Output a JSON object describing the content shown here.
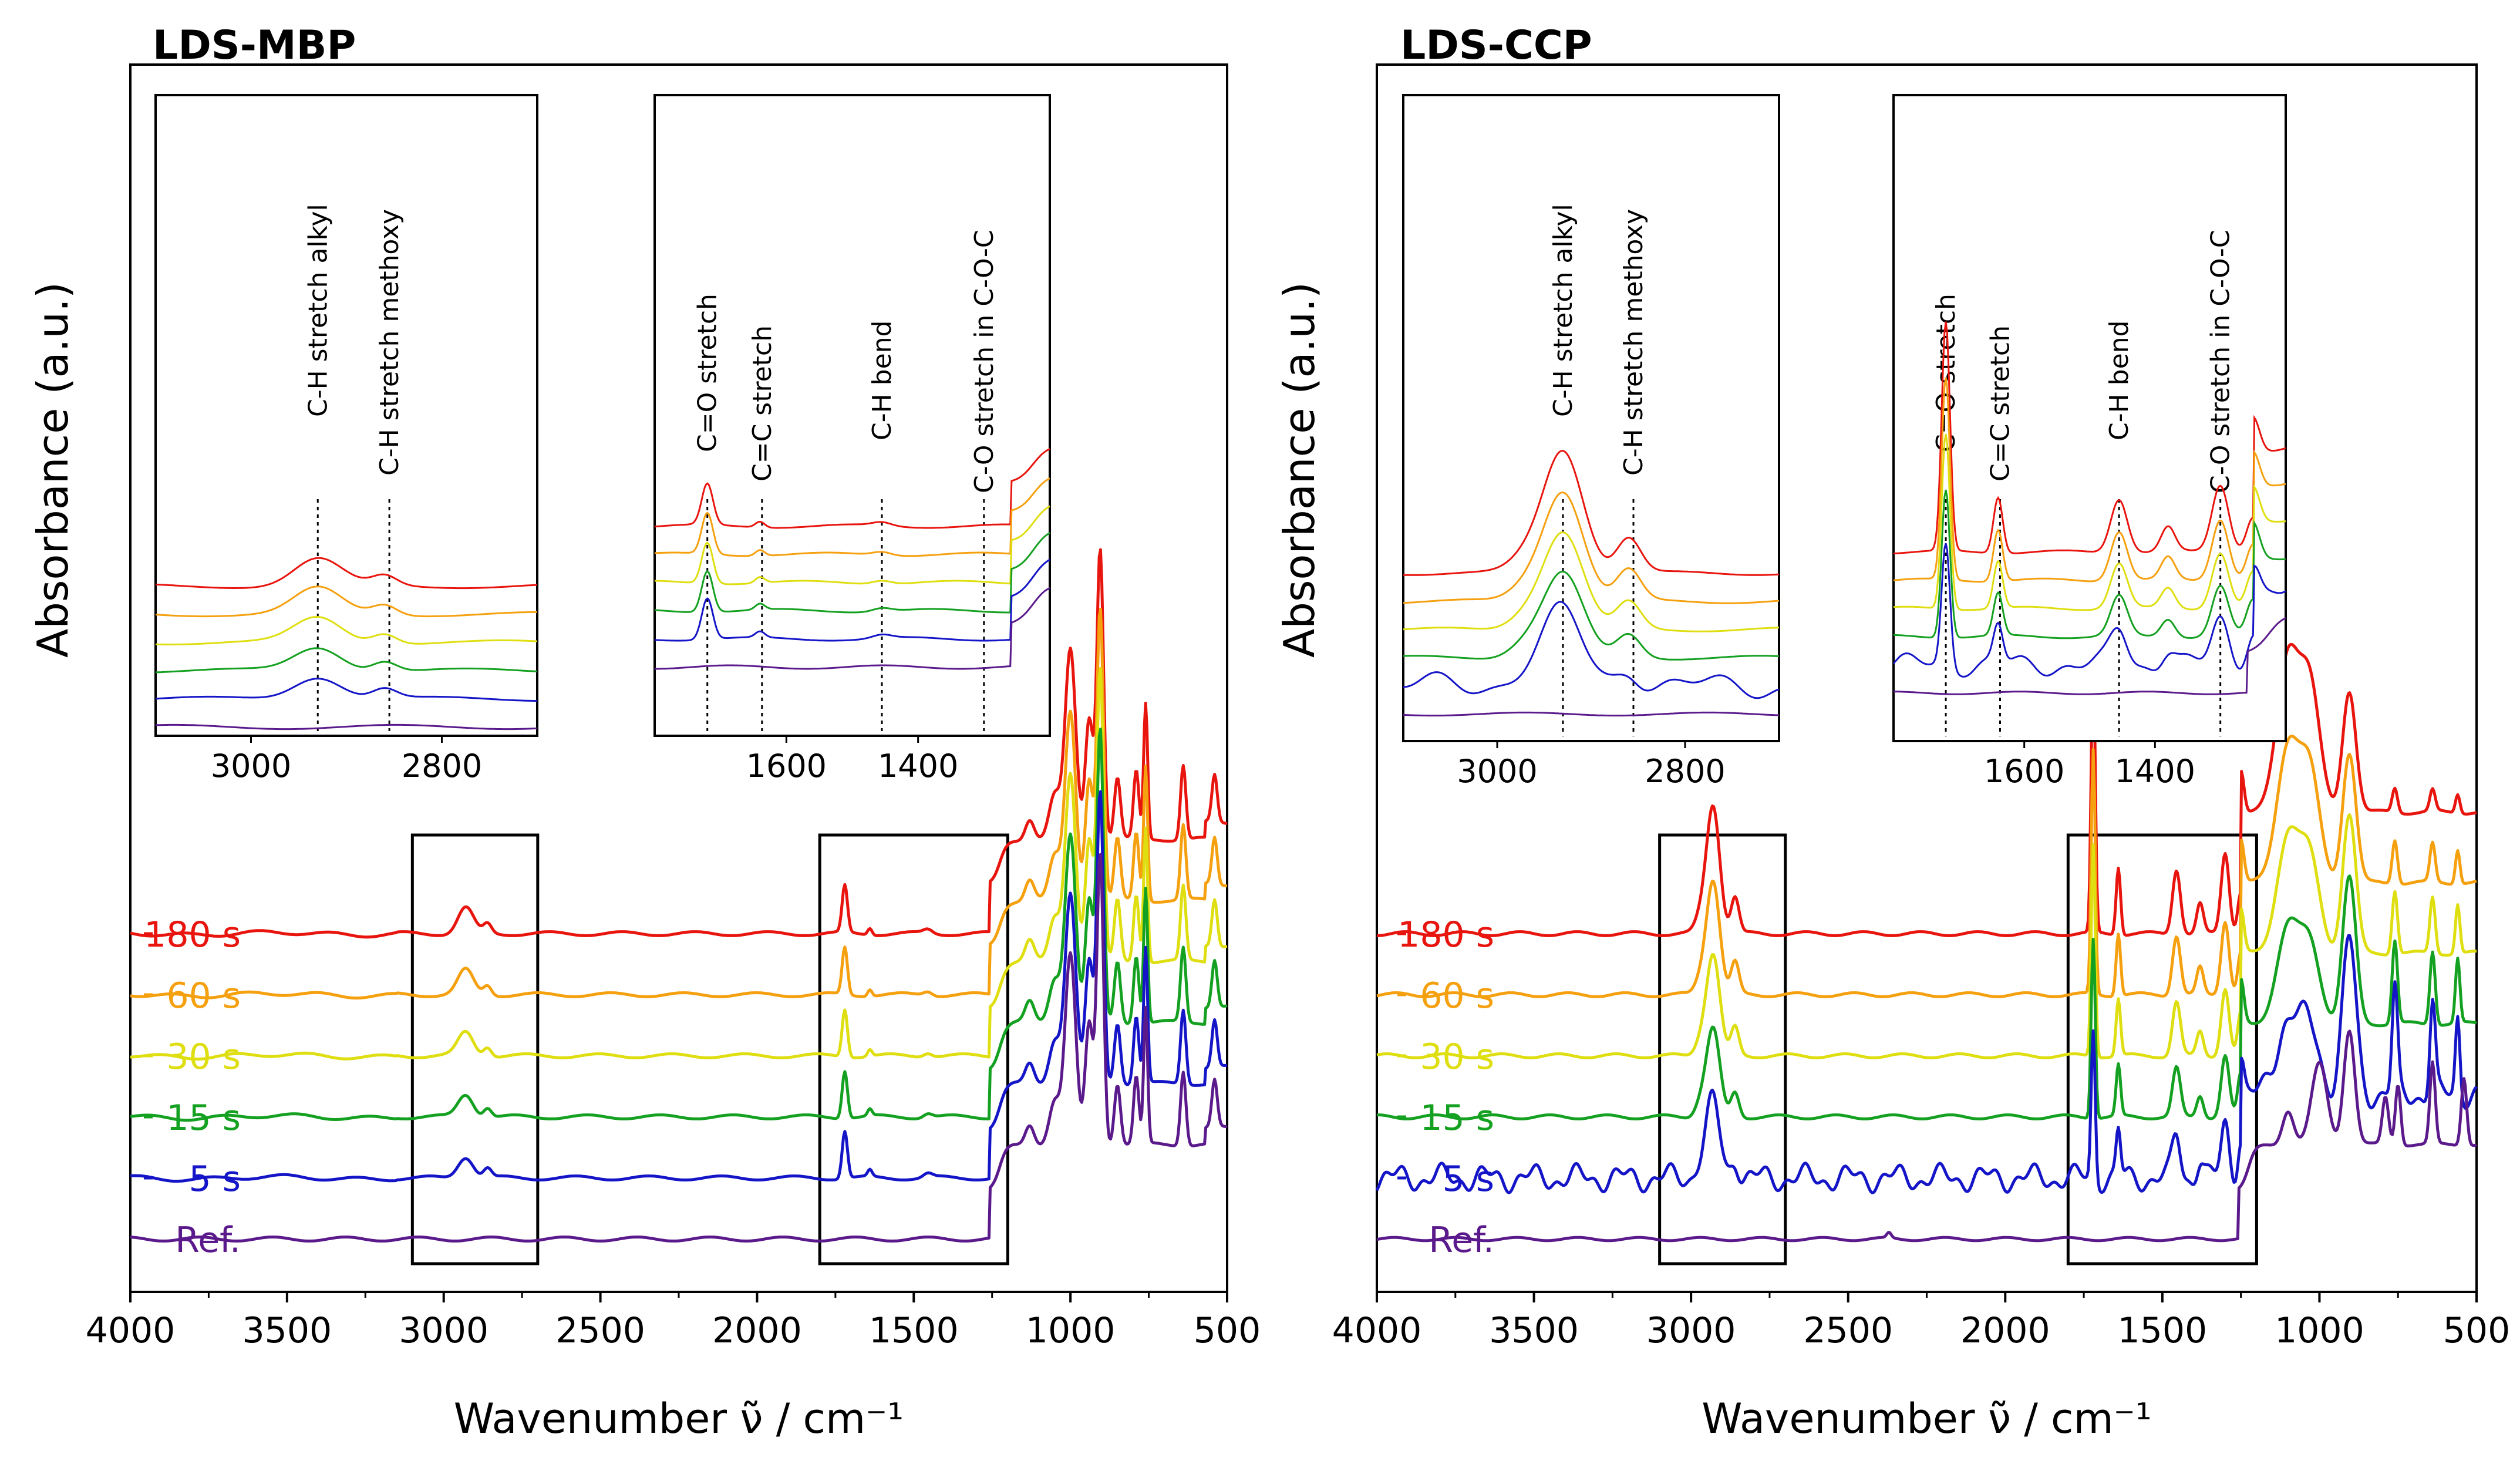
{
  "chart_data": [
    {
      "type": "line",
      "panel_title": "LDS-MBP",
      "xlabel": "Wavenumber ν̃ / cm⁻¹",
      "ylabel": "Absorbance (a.u.)",
      "xlim": [
        4000,
        500
      ],
      "x_ticks": [
        "4000",
        "3500",
        "3000",
        "2500",
        "2000",
        "1500",
        "1000",
        "500"
      ],
      "series": [
        {
          "name": "180 s",
          "color": "#e8140e",
          "offset": 5
        },
        {
          "name": "60 s",
          "color": "#f5a00f",
          "offset": 4
        },
        {
          "name": "30 s",
          "color": "#dede10",
          "offset": 3
        },
        {
          "name": "15 s",
          "color": "#14a020",
          "offset": 2
        },
        {
          "name": "5 s",
          "color": "#1515c8",
          "offset": 1
        },
        {
          "name": "Ref.",
          "color": "#5a1a8c",
          "offset": 0
        }
      ],
      "highlight_boxes": [
        [
          3100,
          2700
        ],
        [
          1800,
          1200
        ]
      ],
      "insets": [
        {
          "range": [
            3100,
            2700
          ],
          "ticks": [
            "3000",
            "2800"
          ],
          "annotations": [
            {
              "x": 2930,
              "label": "C-H stretch alkyl"
            },
            {
              "x": 2855,
              "label": "C-H stretch methoxy"
            }
          ]
        },
        {
          "range": [
            1800,
            1200
          ],
          "ticks": [
            "1600",
            "1400"
          ],
          "annotations": [
            {
              "x": 1720,
              "label": "C=O stretch"
            },
            {
              "x": 1637,
              "label": "C=C stretch"
            },
            {
              "x": 1455,
              "label": "C-H bend"
            },
            {
              "x": 1300,
              "label": "C-O stretch in C-O-C"
            }
          ]
        }
      ]
    },
    {
      "type": "line",
      "panel_title": "LDS-CCP",
      "xlabel": "Wavenumber ν̃ / cm⁻¹",
      "ylabel": "Absorbance (a.u.)",
      "xlim": [
        4000,
        500
      ],
      "x_ticks": [
        "4000",
        "3500",
        "3000",
        "2500",
        "2000",
        "1500",
        "1000",
        "500"
      ],
      "series": [
        {
          "name": "180 s",
          "color": "#e8140e",
          "offset": 5
        },
        {
          "name": "60 s",
          "color": "#f5a00f",
          "offset": 4
        },
        {
          "name": "30 s",
          "color": "#dede10",
          "offset": 3
        },
        {
          "name": "15 s",
          "color": "#14a020",
          "offset": 2
        },
        {
          "name": "5 s",
          "color": "#1515c8",
          "offset": 1
        },
        {
          "name": "Ref.",
          "color": "#5a1a8c",
          "offset": 0
        }
      ],
      "highlight_boxes": [
        [
          3100,
          2700
        ],
        [
          1800,
          1200
        ]
      ],
      "insets": [
        {
          "range": [
            3100,
            2700
          ],
          "ticks": [
            "3000",
            "2800"
          ],
          "annotations": [
            {
              "x": 2930,
              "label": "C-H stretch alkyl"
            },
            {
              "x": 2855,
              "label": "C-H stretch methoxy"
            }
          ]
        },
        {
          "range": [
            1800,
            1200
          ],
          "ticks": [
            "1600",
            "1400"
          ],
          "annotations": [
            {
              "x": 1720,
              "label": "C=O stretch"
            },
            {
              "x": 1637,
              "label": "C=C stretch"
            },
            {
              "x": 1455,
              "label": "C-H bend"
            },
            {
              "x": 1300,
              "label": "C-O stretch in C-O-C"
            }
          ]
        }
      ]
    }
  ]
}
